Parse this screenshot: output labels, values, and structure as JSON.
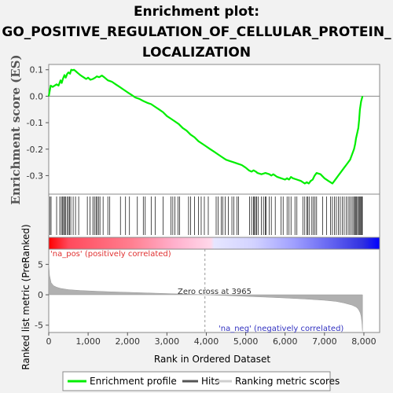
{
  "chart_data": {
    "type": "line",
    "title_lines": [
      "Enrichment plot:",
      "GO_POSITIVE_REGULATION_OF_CELLULAR_PROTEIN_",
      "LOCALIZATION"
    ],
    "es_axis": {
      "label": "Enrichment score (ES)",
      "ylim": [
        -0.37,
        0.12
      ],
      "ticks": [
        0.1,
        0.0,
        -0.1,
        -0.2,
        -0.3
      ],
      "tick_labels": [
        "0.1",
        "0.0",
        "-0.1",
        "-0.2",
        "-0.3"
      ]
    },
    "metric_axis": {
      "label": "Ranked list metric (PreRanked)",
      "ylim": [
        -6.2,
        7.5
      ],
      "ticks": [
        5,
        0,
        -5
      ],
      "tick_labels": [
        "5",
        "0",
        "-5"
      ]
    },
    "x_axis": {
      "label": "Rank in Ordered Dataset",
      "xlim": [
        0,
        8400
      ],
      "ticks": [
        0,
        1000,
        2000,
        3000,
        4000,
        5000,
        6000,
        7000,
        8000
      ],
      "tick_labels": [
        "0",
        "1,000",
        "2,000",
        "3,000",
        "4,000",
        "5,000",
        "6,000",
        "7,000",
        "8,000"
      ]
    },
    "n_genes": 7965,
    "zero_cross": 3965,
    "zero_cross_label": "Zero cross at 3965",
    "pos_label": "'na_pos' (positively correlated)",
    "neg_label": "'na_neg' (negatively correlated)",
    "legend": [
      "Enrichment profile",
      "Hits",
      "Ranking metric scores"
    ],
    "colors": {
      "es_line": "#00ee00",
      "hits": "#000000",
      "metric_fill": "#b0b0b0",
      "pos_red": "#ff0000",
      "neg_blue": "#0000ff",
      "pos_text": "#e03030",
      "neg_text": "#3030c0"
    },
    "series": [
      {
        "name": "Enrichment profile",
        "x": [
          0,
          50,
          100,
          200,
          250,
          300,
          330,
          360,
          400,
          430,
          470,
          500,
          540,
          570,
          610,
          640,
          680,
          720,
          760,
          800,
          850,
          900,
          950,
          1000,
          1060,
          1120,
          1180,
          1220,
          1280,
          1350,
          1420,
          1500,
          1600,
          1700,
          1800,
          1900,
          2000,
          2100,
          2200,
          2300,
          2400,
          2500,
          2600,
          2700,
          2800,
          2900,
          3000,
          3100,
          3200,
          3300,
          3400,
          3500,
          3600,
          3700,
          3800,
          3900,
          4000,
          4100,
          4200,
          4300,
          4400,
          4500,
          4600,
          4700,
          4800,
          4900,
          5000,
          5080,
          5150,
          5200,
          5260,
          5300,
          5400,
          5500,
          5600,
          5650,
          5700,
          5800,
          5900,
          6000,
          6050,
          6100,
          6150,
          6200,
          6300,
          6400,
          6500,
          6550,
          6600,
          6650,
          6700,
          6750,
          6800,
          6900,
          7000,
          7100,
          7150,
          7200,
          7250,
          7300,
          7350,
          7400,
          7450,
          7500,
          7550,
          7600,
          7650,
          7700,
          7750,
          7780,
          7800,
          7830,
          7860,
          7880,
          7900,
          7930,
          7965
        ],
        "values": [
          0.0,
          0.04,
          0.035,
          0.045,
          0.04,
          0.06,
          0.05,
          0.065,
          0.08,
          0.07,
          0.085,
          0.09,
          0.085,
          0.1,
          0.098,
          0.1,
          0.095,
          0.09,
          0.085,
          0.08,
          0.075,
          0.07,
          0.065,
          0.07,
          0.062,
          0.065,
          0.07,
          0.075,
          0.072,
          0.078,
          0.07,
          0.06,
          0.055,
          0.045,
          0.035,
          0.025,
          0.015,
          0.005,
          -0.005,
          -0.01,
          -0.018,
          -0.025,
          -0.03,
          -0.04,
          -0.05,
          -0.06,
          -0.075,
          -0.085,
          -0.095,
          -0.105,
          -0.12,
          -0.13,
          -0.145,
          -0.155,
          -0.17,
          -0.18,
          -0.19,
          -0.2,
          -0.21,
          -0.22,
          -0.23,
          -0.24,
          -0.245,
          -0.25,
          -0.255,
          -0.26,
          -0.27,
          -0.28,
          -0.285,
          -0.28,
          -0.285,
          -0.29,
          -0.295,
          -0.29,
          -0.295,
          -0.3,
          -0.295,
          -0.305,
          -0.31,
          -0.315,
          -0.31,
          -0.315,
          -0.305,
          -0.31,
          -0.315,
          -0.32,
          -0.33,
          -0.325,
          -0.33,
          -0.32,
          -0.315,
          -0.3,
          -0.29,
          -0.295,
          -0.31,
          -0.32,
          -0.325,
          -0.33,
          -0.32,
          -0.31,
          -0.3,
          -0.29,
          -0.28,
          -0.27,
          -0.26,
          -0.25,
          -0.24,
          -0.22,
          -0.2,
          -0.18,
          -0.16,
          -0.14,
          -0.12,
          -0.09,
          -0.05,
          -0.02,
          0.0
        ]
      }
    ],
    "hits": [
      30,
      60,
      200,
      280,
      320,
      350,
      380,
      400,
      430,
      470,
      500,
      530,
      560,
      620,
      680,
      760,
      980,
      1050,
      1120,
      1160,
      1200,
      1230,
      1270,
      1300,
      1380,
      1500,
      1550,
      1820,
      1950,
      2050,
      2250,
      2400,
      2450,
      2600,
      2700,
      2900,
      3100,
      3150,
      3200,
      3280,
      3320,
      3550,
      3600,
      3700,
      3800,
      3870,
      3950,
      4050,
      4250,
      4300,
      4380,
      4420,
      4480,
      4560,
      4650,
      4700,
      4780,
      4820,
      5100,
      5150,
      5200,
      5220,
      5250,
      5280,
      5320,
      5400,
      5450,
      5500,
      5520,
      5600,
      5650,
      5750,
      5900,
      5950,
      6050,
      6100,
      6150,
      6250,
      6300,
      6450,
      6500,
      6550,
      6580,
      6620,
      6680,
      6720,
      6760,
      6800,
      6950,
      7050,
      7150,
      7200,
      7250,
      7300,
      7350,
      7400,
      7450,
      7500,
      7550,
      7600,
      7640,
      7680,
      7720,
      7750,
      7780,
      7800,
      7820,
      7850,
      7880,
      7900,
      7920,
      7945,
      7960
    ],
    "metric": {
      "x": [
        0,
        20,
        60,
        120,
        200,
        300,
        500,
        800,
        1200,
        1600,
        2000,
        2500,
        3000,
        3500,
        3965,
        4500,
        5000,
        5500,
        6000,
        6500,
        7000,
        7300,
        7500,
        7700,
        7800,
        7850,
        7880,
        7910,
        7930,
        7950,
        7965
      ],
      "values": [
        5.2,
        3.2,
        2.0,
        1.5,
        1.25,
        1.05,
        0.85,
        0.7,
        0.58,
        0.48,
        0.4,
        0.3,
        0.2,
        0.1,
        0.0,
        -0.12,
        -0.25,
        -0.38,
        -0.52,
        -0.7,
        -0.9,
        -1.1,
        -1.35,
        -1.7,
        -2.0,
        -2.3,
        -2.6,
        -3.0,
        -3.5,
        -4.5,
        -6.0
      ]
    }
  }
}
